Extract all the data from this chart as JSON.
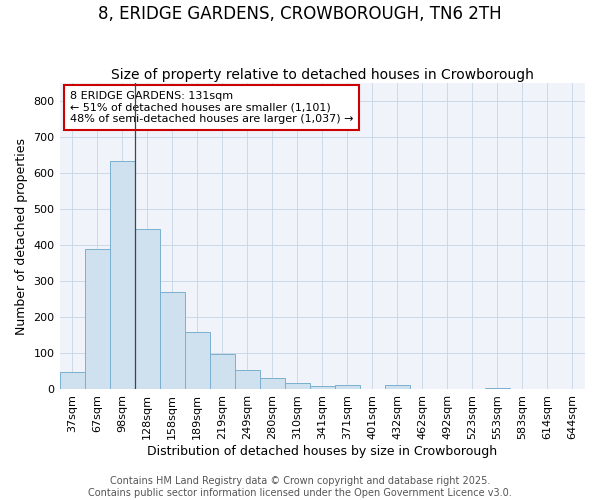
{
  "title": "8, ERIDGE GARDENS, CROWBOROUGH, TN6 2TH",
  "subtitle": "Size of property relative to detached houses in Crowborough",
  "xlabel": "Distribution of detached houses by size in Crowborough",
  "ylabel": "Number of detached properties",
  "bar_color": "#cfe0ee",
  "bar_edge_color": "#7ab0d0",
  "background_color": "#ffffff",
  "plot_bg_color": "#f0f4fa",
  "categories": [
    "37sqm",
    "67sqm",
    "98sqm",
    "128sqm",
    "158sqm",
    "189sqm",
    "219sqm",
    "249sqm",
    "280sqm",
    "310sqm",
    "341sqm",
    "371sqm",
    "401sqm",
    "432sqm",
    "462sqm",
    "492sqm",
    "523sqm",
    "553sqm",
    "583sqm",
    "614sqm",
    "644sqm"
  ],
  "values": [
    48,
    390,
    635,
    445,
    270,
    158,
    98,
    53,
    30,
    17,
    8,
    12,
    0,
    10,
    0,
    0,
    0,
    4,
    0,
    0,
    0
  ],
  "ylim": [
    0,
    850
  ],
  "yticks": [
    0,
    100,
    200,
    300,
    400,
    500,
    600,
    700,
    800
  ],
  "property_line_bin": 3,
  "annotation_text": "8 ERIDGE GARDENS: 131sqm\n← 51% of detached houses are smaller (1,101)\n48% of semi-detached houses are larger (1,037) →",
  "annotation_box_facecolor": "#ffffff",
  "annotation_box_edgecolor": "#cc0000",
  "grid_color": "#c5d5e5",
  "title_fontsize": 12,
  "subtitle_fontsize": 10,
  "axis_label_fontsize": 9,
  "tick_fontsize": 8,
  "annotation_fontsize": 8,
  "footer_fontsize": 7,
  "footer_line1": "Contains HM Land Registry data © Crown copyright and database right 2025.",
  "footer_line2": "Contains public sector information licensed under the Open Government Licence v3.0."
}
